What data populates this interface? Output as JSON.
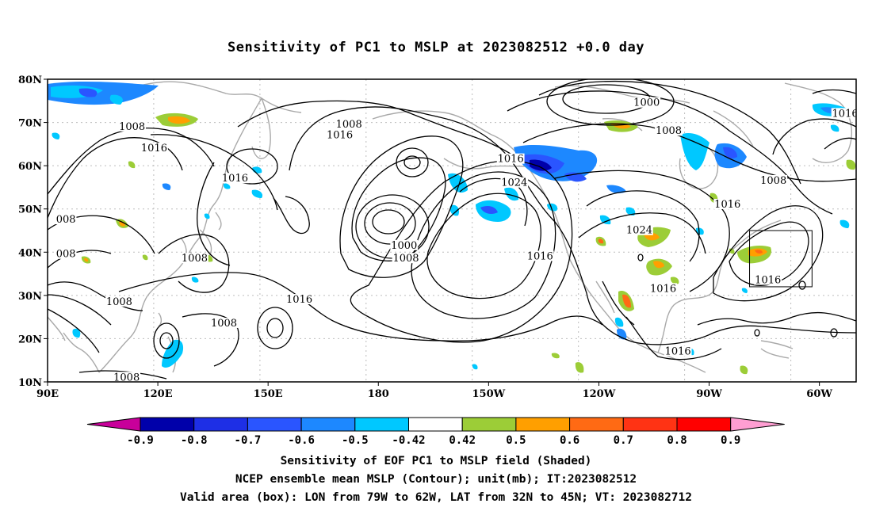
{
  "title": "Sensitivity of PC1 to MSLP at 2023082512 +0.0 day",
  "lat_ticks": [
    "80N",
    "70N",
    "60N",
    "50N",
    "40N",
    "30N",
    "20N",
    "10N"
  ],
  "lon_ticks": [
    "90E",
    "120E",
    "150E",
    "180",
    "150W",
    "120W",
    "90W",
    "60W"
  ],
  "contour_labels": [
    {
      "text": "1000",
      "lon": -107,
      "lat": 74
    },
    {
      "text": "1016",
      "lon": -53,
      "lat": 71.5
    },
    {
      "text": "1008",
      "lon": 113,
      "lat": 68.5
    },
    {
      "text": "1008",
      "lon": 172,
      "lat": 69
    },
    {
      "text": "1016",
      "lon": 119,
      "lat": 63.5
    },
    {
      "text": "1016",
      "lon": 169.5,
      "lat": 66.5
    },
    {
      "text": "1008",
      "lon": -101,
      "lat": 67.5
    },
    {
      "text": "1016",
      "lon": -144,
      "lat": 61
    },
    {
      "text": "1016",
      "lon": 141,
      "lat": 56.5
    },
    {
      "text": "1024",
      "lon": -143,
      "lat": 55.5
    },
    {
      "text": "1008",
      "lon": -72.5,
      "lat": 56
    },
    {
      "text": "1016",
      "lon": -85,
      "lat": 50.5
    },
    {
      "text": "008",
      "lon": 95,
      "lat": 47
    },
    {
      "text": "1024",
      "lon": -109,
      "lat": 44.5
    },
    {
      "text": "008",
      "lon": 95,
      "lat": 39
    },
    {
      "text": "1000",
      "lon": -173,
      "lat": 41
    },
    {
      "text": "1008",
      "lon": -172.5,
      "lat": 38
    },
    {
      "text": "1008",
      "lon": 130,
      "lat": 38
    },
    {
      "text": "1016",
      "lon": -136,
      "lat": 38.5
    },
    {
      "text": "1016",
      "lon": -102.5,
      "lat": 31
    },
    {
      "text": "1016",
      "lon": -74,
      "lat": 33
    },
    {
      "text": "1008",
      "lon": 109.5,
      "lat": 28
    },
    {
      "text": "1016",
      "lon": 158.5,
      "lat": 28.5
    },
    {
      "text": "1008",
      "lon": 138,
      "lat": 23
    },
    {
      "text": "1016",
      "lon": -98.5,
      "lat": 16.5
    },
    {
      "text": "1008",
      "lon": 111.5,
      "lat": 10.5
    }
  ],
  "colorbar": {
    "ticks": [
      "-0.9",
      "-0.8",
      "-0.7",
      "-0.6",
      "-0.5",
      "-0.42",
      "0.42",
      "0.5",
      "0.6",
      "0.7",
      "0.8",
      "0.9"
    ],
    "colors": [
      "#c8009a",
      "#0000aa",
      "#1e2fe6",
      "#2a55ff",
      "#1d88ff",
      "#00c8ff",
      "#ffffff",
      "#9ccd37",
      "#ff9f00",
      "#ff6a14",
      "#ff3314",
      "#ff0000",
      "#ff9ed2"
    ]
  },
  "box": {
    "lon_min": -79,
    "lon_max": -62,
    "lat_min": 32,
    "lat_max": 45
  },
  "captions": [
    "Sensitivity of EOF PC1 to MSLP field (Shaded)",
    "NCEP ensemble mean MSLP (Contour); unit(mb); IT:2023082512",
    "Valid area (box): LON from 79W to 62W, LAT from 32N to 45N; VT: 2023082712"
  ]
}
